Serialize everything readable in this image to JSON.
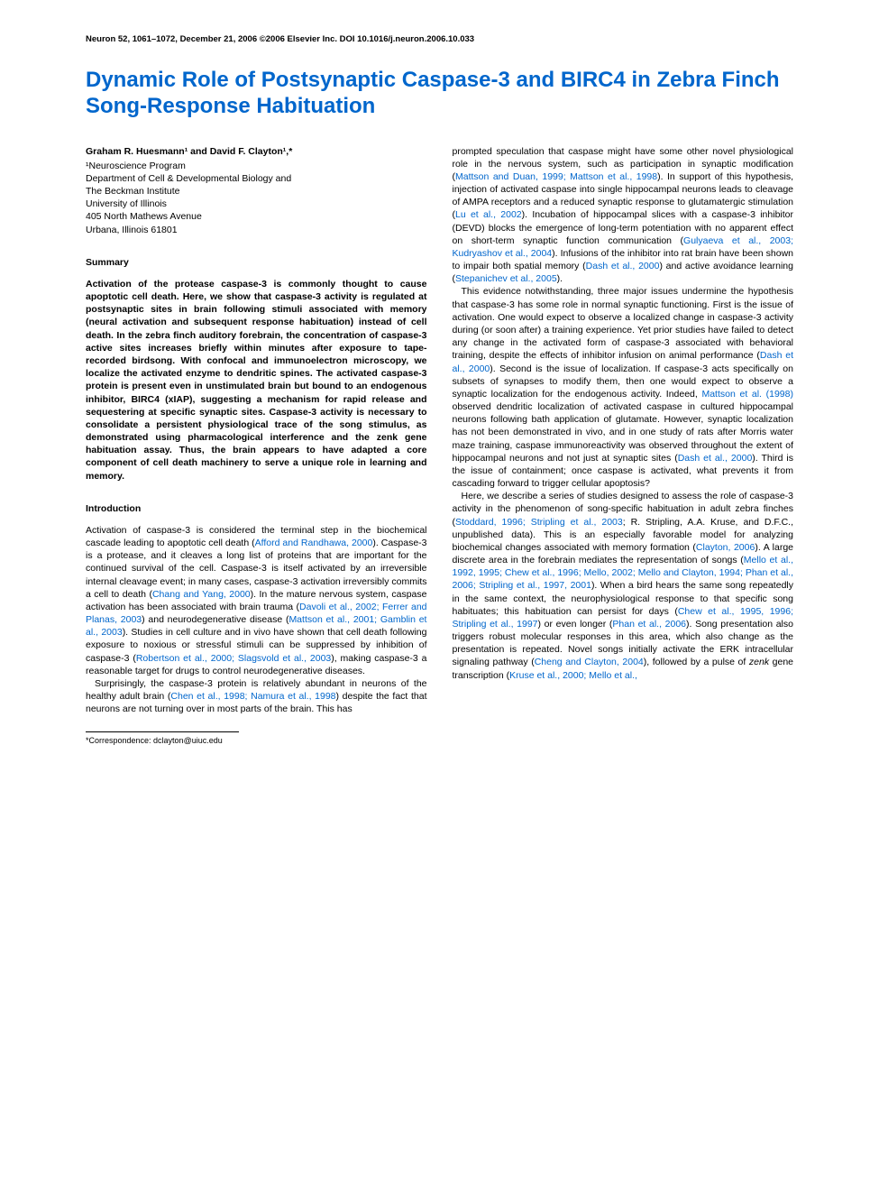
{
  "header": {
    "text": "Neuron 52, 1061–1072, December 21, 2006 ©2006 Elsevier Inc.   DOI 10.1016/j.neuron.2006.10.033"
  },
  "title": "Dynamic Role of Postsynaptic Caspase-3 and BIRC4 in Zebra Finch Song-Response Habituation",
  "authors": {
    "line": "Graham R. Huesmann¹ and David F. Clayton¹,*"
  },
  "affiliation": {
    "l1": "¹Neuroscience Program",
    "l2": "Department of Cell & Developmental Biology and",
    "l3": "The Beckman Institute",
    "l4": "University of Illinois",
    "l5": "405 North Mathews Avenue",
    "l6": "Urbana, Illinois 61801"
  },
  "sections": {
    "summary_heading": "Summary",
    "intro_heading": "Introduction"
  },
  "summary": "Activation of the protease caspase-3 is commonly thought to cause apoptotic cell death. Here, we show that caspase-3 activity is regulated at postsynaptic sites in brain following stimuli associated with memory (neural activation and subsequent response habituation) instead of cell death. In the zebra finch auditory forebrain, the concentration of caspase-3 active sites increases briefly within minutes after exposure to tape-recorded birdsong. With confocal and immunoelectron microscopy, we localize the activated enzyme to dendritic spines. The activated caspase-3 protein is present even in unstimulated brain but bound to an endogenous inhibitor, BIRC4 (xIAP), suggesting a mechanism for rapid release and sequestering at specific synaptic sites. Caspase-3 activity is necessary to consolidate a persistent physiological trace of the song stimulus, as demonstrated using pharmacological interference and the zenk gene habituation assay. Thus, the brain appears to have adapted a core component of cell death machinery to serve a unique role in learning and memory.",
  "col1": {
    "p1a": "Activation of caspase-3 is considered the terminal step in the biochemical cascade leading to apoptotic cell death (",
    "p1c1": "Afford and Randhawa, 2000",
    "p1b": "). Caspase-3 is a protease, and it cleaves a long list of proteins that are important for the continued survival of the cell. Caspase-3 is itself activated by an irreversible internal cleavage event; in many cases, caspase-3 activation irreversibly commits a cell to death (",
    "p1c2": "Chang and Yang, 2000",
    "p1c": "). In the mature nervous system, caspase activation has been associated with brain trauma (",
    "p1c3": "Davoli et al., 2002; Ferrer and Planas, 2003",
    "p1d": ") and neurodegenerative disease (",
    "p1c4": "Mattson et al., 2001; Gamblin et al., 2003",
    "p1e": "). Studies in cell culture and in vivo have shown that cell death following exposure to noxious or stressful stimuli can be suppressed by inhibition of caspase-3 (",
    "p1c5": "Robertson et al., 2000; Slagsvold et al., 2003",
    "p1f": "), making caspase-3 a reasonable target for drugs to control neurodegenerative diseases.",
    "p2a": "Surprisingly, the caspase-3 protein is relatively abundant in neurons of the healthy adult brain (",
    "p2c1": "Chen et al., 1998; Namura et al., 1998",
    "p2b": ") despite the fact that neurons are not turning over in most parts of the brain. This has"
  },
  "col2": {
    "p1a": "prompted speculation that caspase might have some other novel physiological role in the nervous system, such as participation in synaptic modification (",
    "p1c1": "Mattson and Duan, 1999; Mattson et al., 1998",
    "p1b": "). In support of this hypothesis, injection of activated caspase into single hippocampal neurons leads to cleavage of AMPA receptors and a reduced synaptic response to glutamatergic stimulation (",
    "p1c2": "Lu et al., 2002",
    "p1c": "). Incubation of hippocampal slices with a caspase-3 inhibitor (DEVD) blocks the emergence of long-term potentiation with no apparent effect on short-term synaptic function communication (",
    "p1c3": "Gulyaeva et al., 2003; Kudryashov et al., 2004",
    "p1d": "). Infusions of the inhibitor into rat brain have been shown to impair both spatial memory (",
    "p1c4": "Dash et al., 2000",
    "p1e": ") and active avoidance learning (",
    "p1c5": "Stepanichev et al., 2005",
    "p1f": ").",
    "p2a": "This evidence notwithstanding, three major issues undermine the hypothesis that caspase-3 has some role in normal synaptic functioning. First is the issue of activation. One would expect to observe a localized change in caspase-3 activity during (or soon after) a training experience. Yet prior studies have failed to detect any change in the activated form of caspase-3 associated with behavioral training, despite the effects of inhibitor infusion on animal performance (",
    "p2c1": "Dash et al., 2000",
    "p2b": "). Second is the issue of localization. If caspase-3 acts specifically on subsets of synapses to modify them, then one would expect to observe a synaptic localization for the endogenous activity. Indeed, ",
    "p2c2": "Mattson et al. (1998)",
    "p2c": " observed dendritic localization of activated caspase in cultured hippocampal neurons following bath application of glutamate. However, synaptic localization has not been demonstrated in vivo, and in one study of rats after Morris water maze training, caspase immunoreactivity was observed throughout the extent of hippocampal neurons and not just at synaptic sites (",
    "p2c3": "Dash et al., 2000",
    "p2d": "). Third is the issue of containment; once caspase is activated, what prevents it from cascading forward to trigger cellular apoptosis?",
    "p3a": "Here, we describe a series of studies designed to assess the role of caspase-3 activity in the phenomenon of song-specific habituation in adult zebra finches (",
    "p3c1": "Stoddard, 1996; Stripling et al., 2003",
    "p3b": "; R. Stripling, A.A. Kruse, and D.F.C., unpublished data). This is an especially favorable model for analyzing biochemical changes associated with memory formation (",
    "p3c2": "Clayton, 2006",
    "p3c": "). A large discrete area in the forebrain mediates the representation of songs (",
    "p3c3": "Mello et al., 1992, 1995; Chew et al., 1996; Mello, 2002; Mello and Clayton, 1994; Phan et al., 2006; Stripling et al., 1997, 2001",
    "p3d": "). When a bird hears the same song repeatedly in the same context, the neurophysiological response to that specific song habituates; this habituation can persist for days (",
    "p3c4": "Chew et al., 1995, 1996; Stripling et al., 1997",
    "p3e": ") or even longer (",
    "p3c5": "Phan et al., 2006",
    "p3f": "). Song presentation also triggers robust molecular responses in this area, which also change as the presentation is repeated. Novel songs initially activate the ERK intracellular signaling pathway (",
    "p3c6": "Cheng and Clayton, 2004",
    "p3g": "), followed by a pulse of ",
    "p3i": "zenk",
    "p3h": " gene transcription (",
    "p3c7": "Kruse et al., 2000; Mello et al.,"
  },
  "footnote": {
    "text": "*Correspondence: dclayton@uiuc.edu"
  },
  "colors": {
    "link": "#0066cc",
    "title": "#0066cc",
    "text": "#000000",
    "background": "#ffffff"
  }
}
